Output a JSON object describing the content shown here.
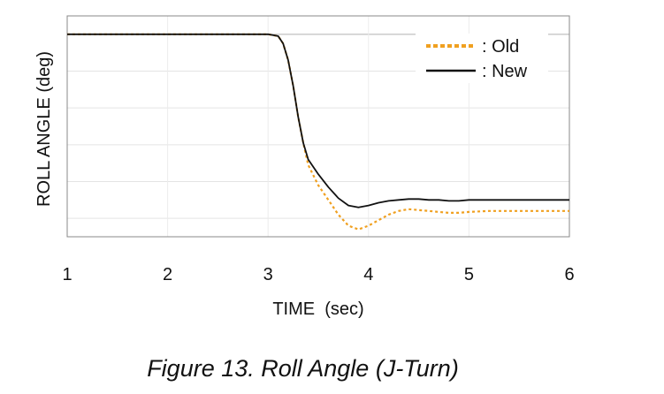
{
  "caption": "Figure 13. Roll Angle (J-Turn)",
  "chart_data": {
    "type": "line",
    "xlabel": "TIME  (sec)",
    "ylabel": "ROLL ANGLE (deg)",
    "xlim": [
      1,
      6
    ],
    "xticks": [
      "1",
      "2",
      "3",
      "4",
      "5",
      "6"
    ],
    "y_tick_labels_shown": false,
    "grid": true,
    "legend_position": "top-right",
    "series": [
      {
        "name": ": Old",
        "style": "dotted",
        "color": "#f0a020",
        "x": [
          1.0,
          2.0,
          3.0,
          3.1,
          3.15,
          3.2,
          3.25,
          3.3,
          3.35,
          3.4,
          3.5,
          3.6,
          3.7,
          3.8,
          3.9,
          4.0,
          4.1,
          4.2,
          4.3,
          4.4,
          4.5,
          4.6,
          4.7,
          4.8,
          4.9,
          5.0,
          5.2,
          5.4,
          5.6,
          5.8,
          6.0
        ],
        "y": [
          0.0,
          0.0,
          0.0,
          -0.1,
          -0.5,
          -1.4,
          -2.8,
          -4.5,
          -5.9,
          -7.1,
          -8.2,
          -9.0,
          -9.8,
          -10.4,
          -10.6,
          -10.4,
          -10.1,
          -9.8,
          -9.6,
          -9.5,
          -9.55,
          -9.6,
          -9.65,
          -9.7,
          -9.7,
          -9.65,
          -9.6,
          -9.6,
          -9.6,
          -9.6,
          -9.6
        ]
      },
      {
        "name": ": New",
        "style": "solid",
        "color": "#111111",
        "x": [
          1.0,
          2.0,
          3.0,
          3.1,
          3.15,
          3.2,
          3.25,
          3.3,
          3.35,
          3.4,
          3.5,
          3.6,
          3.7,
          3.8,
          3.9,
          4.0,
          4.1,
          4.2,
          4.3,
          4.4,
          4.5,
          4.6,
          4.7,
          4.8,
          4.9,
          5.0,
          5.2,
          5.4,
          5.6,
          5.8,
          6.0
        ],
        "y": [
          0.0,
          0.0,
          0.0,
          -0.1,
          -0.5,
          -1.4,
          -2.8,
          -4.5,
          -5.9,
          -6.8,
          -7.6,
          -8.3,
          -8.9,
          -9.3,
          -9.4,
          -9.3,
          -9.15,
          -9.05,
          -9.0,
          -8.95,
          -8.95,
          -9.0,
          -9.0,
          -9.05,
          -9.05,
          -9.0,
          -9.0,
          -9.0,
          -9.0,
          -9.0,
          -9.0
        ]
      }
    ]
  }
}
